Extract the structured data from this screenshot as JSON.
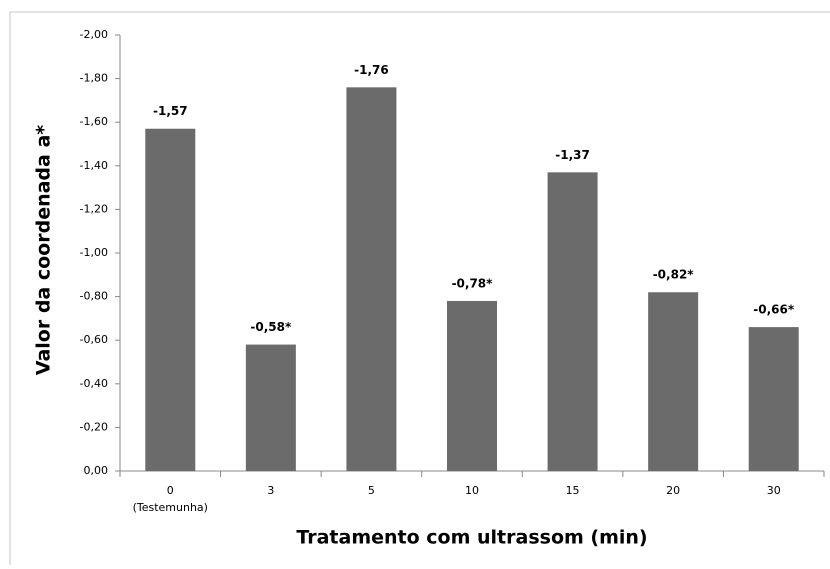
{
  "chart_data": {
    "type": "bar",
    "x_label": "Tratamento com ultrassom (min)",
    "y_label": "Valor da coordenada a*",
    "categories": [
      "0",
      "3",
      "5",
      "10",
      "15",
      "20",
      "30"
    ],
    "annotations": [
      "(Testemunha)"
    ],
    "values": [
      -1.57,
      -0.58,
      -1.76,
      -0.78,
      -1.37,
      -0.82,
      -0.66
    ],
    "value_labels": [
      "-1,57",
      "-0,58*",
      "-1,76",
      "-0,78*",
      "-1,37",
      "-0,82*",
      "-0,66*"
    ],
    "color": "#6b6b6b",
    "ylim": [
      0,
      -2
    ],
    "yticks": [
      {
        "value": 0,
        "label": "0,00"
      },
      {
        "value": -0.2,
        "label": "-0,20"
      },
      {
        "value": -0.4,
        "label": "-0,40"
      },
      {
        "value": -0.6,
        "label": "-0,60"
      },
      {
        "value": -0.8,
        "label": "-0,80"
      },
      {
        "value": -1,
        "label": "-1,00"
      },
      {
        "value": -1.2,
        "label": "-1,20"
      },
      {
        "value": -1.4,
        "label": "-1,40"
      },
      {
        "value": -1.6,
        "label": "-1,60"
      },
      {
        "value": -1.8,
        "label": "-1,80"
      },
      {
        "value": -2,
        "label": "-2,00"
      }
    ],
    "grid": false
  }
}
